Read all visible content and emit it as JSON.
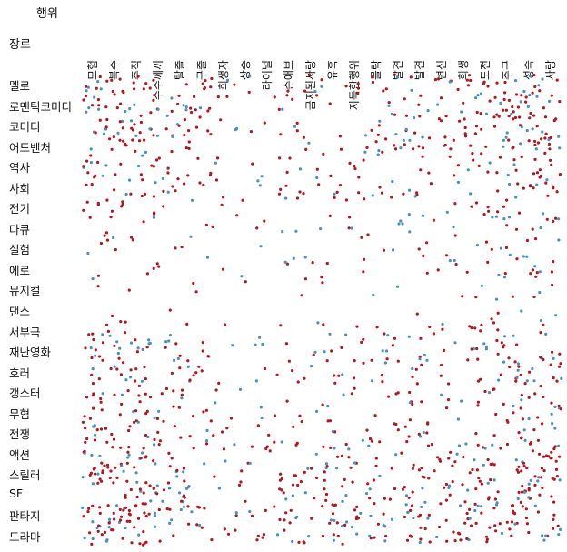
{
  "chart_data": {
    "type": "scatter",
    "title": "",
    "xlabel": "행위",
    "ylabel": "장르",
    "x": [
      "모험",
      "복수",
      "추적",
      "수수께끼",
      "탈출",
      "구출",
      "희생자",
      "상승",
      "라이벌",
      "순애보",
      "금지된사랑",
      "유혹",
      "지독한행위",
      "몰락",
      "발견",
      "발견",
      "변신",
      "희생",
      "도전",
      "추구",
      "성숙",
      "사랑"
    ],
    "y": [
      "멜로",
      "로맨틱코미디",
      "코미디",
      "어드벤처",
      "역사",
      "사회",
      "전기",
      "다큐",
      "실험",
      "에로",
      "뮤지컬",
      "댄스",
      "서부극",
      "재난영화",
      "호러",
      "갱스터",
      "무협",
      "전쟁",
      "액션",
      "스릴러",
      "SF",
      "판타지",
      "드라마"
    ],
    "series": [],
    "colors": {
      "primary": "#b0171f",
      "secondary": "#4a90c2"
    },
    "grid": false,
    "legend": "none"
  }
}
